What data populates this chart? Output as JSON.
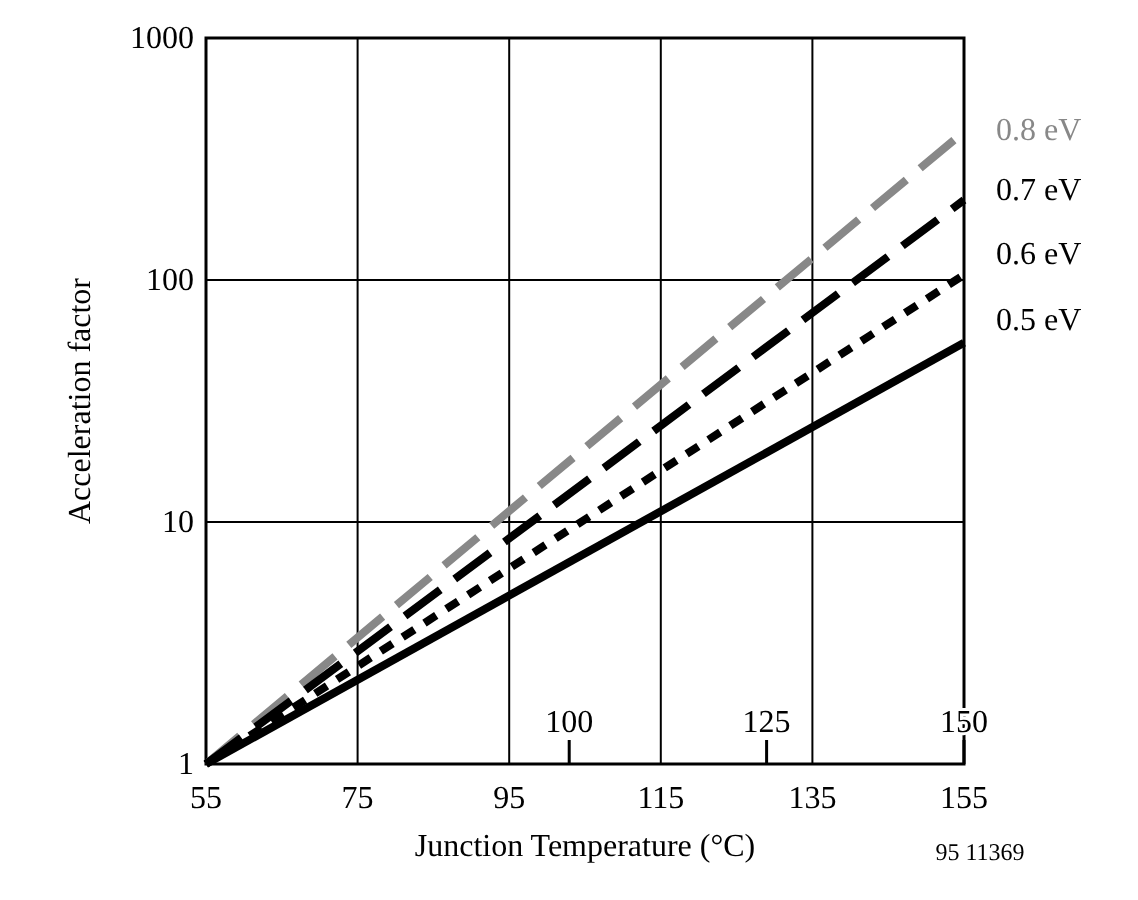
{
  "chart_data": {
    "type": "line",
    "xlabel": "Junction Temperature (°C)",
    "ylabel": "Acceleration factor",
    "xlim": [
      55,
      155
    ],
    "xticks": [
      55,
      75,
      95,
      115,
      135,
      155
    ],
    "x2lim": [
      54,
      150
    ],
    "x2ticks": [
      100,
      125,
      150
    ],
    "ylim": [
      1,
      1000
    ],
    "yticks": [
      1,
      10,
      100,
      1000
    ],
    "log": "y",
    "x": [
      55,
      155
    ],
    "grid": true,
    "legend": "right",
    "annotations": [
      "95 11369"
    ],
    "series": [
      {
        "name": "0.8 eV",
        "color": "#888888",
        "line_style": "dashed",
        "values": [
          1,
          410
        ]
      },
      {
        "name": "0.7 eV",
        "color": "#000000",
        "line_style": "dashed",
        "values": [
          1,
          214
        ]
      },
      {
        "name": "0.6 eV",
        "color": "#000000",
        "line_style": "dotted",
        "values": [
          1,
          105
        ]
      },
      {
        "name": "0.5 eV",
        "color": "#000000",
        "line_style": "solid",
        "values": [
          1,
          55
        ]
      }
    ]
  }
}
